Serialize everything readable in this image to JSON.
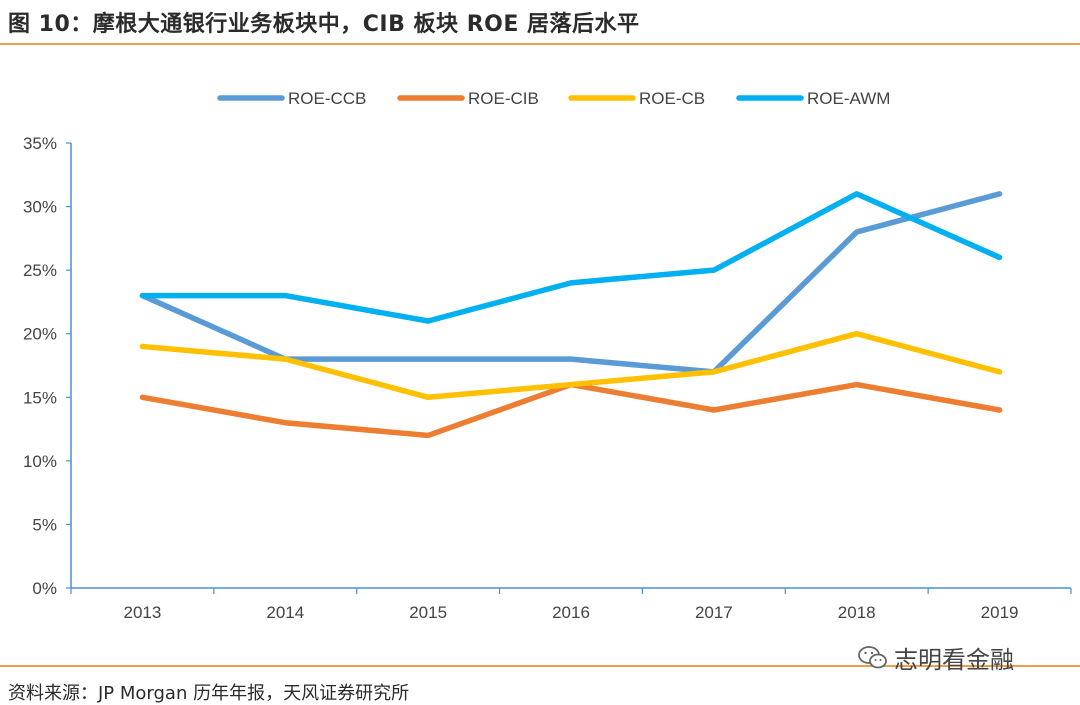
{
  "header": {
    "title": "图 10：摩根大通银行业务板块中，CIB 板块 ROE 居落后水平"
  },
  "footer": {
    "source": "资料来源：JP Morgan 历年年报，天风证券研究所"
  },
  "watermark": {
    "text": "志明看金融",
    "icon": "wechat-icon"
  },
  "chart_data": {
    "type": "line",
    "categories": [
      "2013",
      "2014",
      "2015",
      "2016",
      "2017",
      "2018",
      "2019"
    ],
    "ylim": [
      0,
      35
    ],
    "yticks": [
      0,
      5,
      10,
      15,
      20,
      25,
      30,
      35
    ],
    "ytick_labels": [
      "0%",
      "5%",
      "10%",
      "15%",
      "20%",
      "25%",
      "30%",
      "35%"
    ],
    "grid": false,
    "legend_position": "top",
    "series": [
      {
        "name": "ROE-CCB",
        "color": "#5b9bd5",
        "values": [
          23,
          18,
          18,
          18,
          17,
          28,
          31
        ]
      },
      {
        "name": "ROE-CIB",
        "color": "#ed7d31",
        "values": [
          15,
          13,
          12,
          16,
          14,
          16,
          14
        ]
      },
      {
        "name": "ROE-CB",
        "color": "#ffc000",
        "values": [
          19,
          18,
          15,
          16,
          17,
          20,
          17
        ]
      },
      {
        "name": "ROE-AWM",
        "color": "#00b0f0",
        "values": [
          23,
          23,
          21,
          24,
          25,
          31,
          26
        ]
      }
    ]
  }
}
